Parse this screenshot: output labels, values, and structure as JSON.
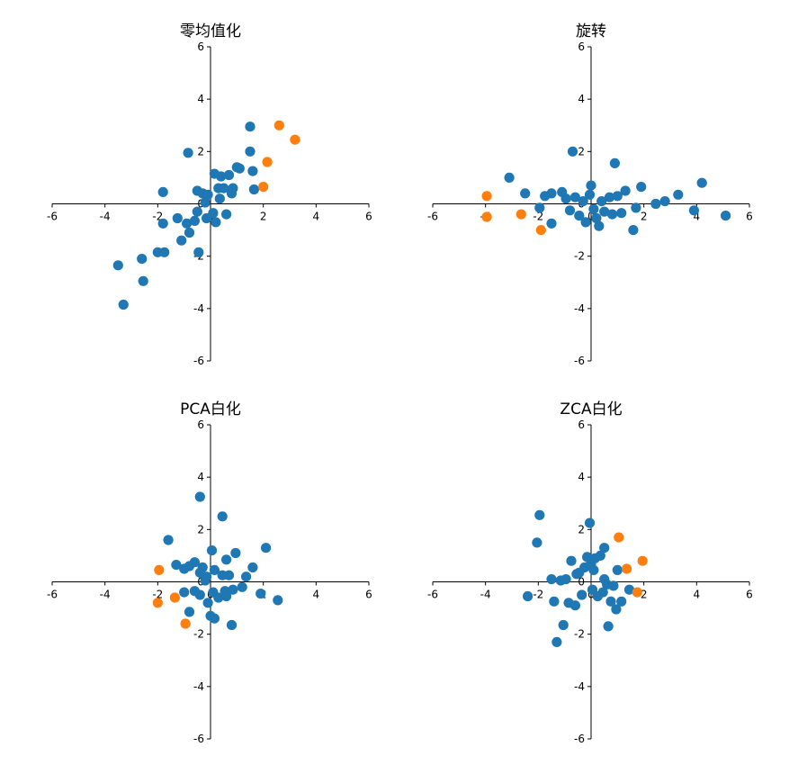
{
  "colors": {
    "series_main": "#1f77b4",
    "series_highlight": "#ff7f0e",
    "axis": "#000000"
  },
  "chart_data": [
    {
      "type": "scatter",
      "title": "零均值化",
      "xlim": [
        -6,
        6
      ],
      "ylim": [
        -6,
        6
      ],
      "xticks": [
        "-6",
        "-4",
        "-2",
        "0",
        "2",
        "4",
        "6"
      ],
      "yticks": [
        "-6",
        "-4",
        "-2",
        "0",
        "2",
        "4",
        "6"
      ],
      "spines": "centered",
      "grid": false,
      "series": [
        {
          "color": "#1f77b4",
          "points": [
            [
              -3.3,
              -3.85
            ],
            [
              -3.5,
              -2.35
            ],
            [
              -2.6,
              -2.1
            ],
            [
              -2.55,
              -2.95
            ],
            [
              -2.0,
              -1.85
            ],
            [
              -1.75,
              -1.85
            ],
            [
              -1.8,
              -0.75
            ],
            [
              -1.8,
              0.45
            ],
            [
              -1.25,
              -0.55
            ],
            [
              -1.1,
              -1.4
            ],
            [
              -0.9,
              -0.75
            ],
            [
              -0.8,
              -1.1
            ],
            [
              -0.6,
              -0.65
            ],
            [
              -0.5,
              -0.3
            ],
            [
              -0.45,
              -1.85
            ],
            [
              -0.5,
              0.5
            ],
            [
              -0.3,
              0.4
            ],
            [
              -0.2,
              0.05
            ],
            [
              -0.15,
              -0.55
            ],
            [
              -0.1,
              0.35
            ],
            [
              0.1,
              -0.35
            ],
            [
              0.2,
              -0.7
            ],
            [
              0.3,
              0.6
            ],
            [
              0.35,
              0.2
            ],
            [
              0.4,
              1.05
            ],
            [
              0.5,
              0.6
            ],
            [
              0.6,
              -0.4
            ],
            [
              0.7,
              1.1
            ],
            [
              0.8,
              0.4
            ],
            [
              0.85,
              0.6
            ],
            [
              1.0,
              1.4
            ],
            [
              1.1,
              1.35
            ],
            [
              1.5,
              2.0
            ],
            [
              1.5,
              2.95
            ],
            [
              1.6,
              1.25
            ],
            [
              1.65,
              0.55
            ],
            [
              -0.85,
              1.95
            ],
            [
              0.15,
              1.15
            ]
          ]
        },
        {
          "color": "#ff7f0e",
          "points": [
            [
              2.6,
              3.0
            ],
            [
              3.2,
              2.45
            ],
            [
              2.15,
              1.6
            ],
            [
              2.0,
              0.65
            ]
          ]
        }
      ]
    },
    {
      "type": "scatter",
      "title": "旋转",
      "xlim": [
        -6,
        6
      ],
      "ylim": [
        -6,
        6
      ],
      "xticks": [
        "-6",
        "-4",
        "-2",
        "0",
        "2",
        "4",
        "6"
      ],
      "yticks": [
        "-6",
        "-4",
        "-2",
        "0",
        "2",
        "4",
        "6"
      ],
      "spines": "centered",
      "grid": false,
      "series": [
        {
          "color": "#1f77b4",
          "points": [
            [
              -3.1,
              1.0
            ],
            [
              -2.5,
              0.4
            ],
            [
              -1.95,
              -0.15
            ],
            [
              -1.75,
              0.3
            ],
            [
              -1.5,
              0.4
            ],
            [
              -1.5,
              -0.75
            ],
            [
              -1.1,
              0.45
            ],
            [
              -0.95,
              0.2
            ],
            [
              -0.8,
              -0.25
            ],
            [
              -0.7,
              2.0
            ],
            [
              -0.6,
              0.25
            ],
            [
              -0.45,
              -0.45
            ],
            [
              -0.3,
              0.1
            ],
            [
              -0.2,
              -0.7
            ],
            [
              -0.05,
              0.35
            ],
            [
              0.0,
              0.7
            ],
            [
              0.1,
              -0.2
            ],
            [
              0.2,
              -0.55
            ],
            [
              0.3,
              -0.85
            ],
            [
              0.4,
              0.1
            ],
            [
              0.5,
              -0.3
            ],
            [
              0.7,
              0.25
            ],
            [
              0.8,
              -0.4
            ],
            [
              0.9,
              1.55
            ],
            [
              1.0,
              0.3
            ],
            [
              1.15,
              -0.35
            ],
            [
              1.3,
              0.5
            ],
            [
              1.7,
              -0.15
            ],
            [
              1.6,
              -1.0
            ],
            [
              1.9,
              0.65
            ],
            [
              2.45,
              0.0
            ],
            [
              2.8,
              0.1
            ],
            [
              3.3,
              0.35
            ],
            [
              3.9,
              -0.25
            ],
            [
              4.2,
              0.8
            ],
            [
              5.1,
              -0.45
            ]
          ]
        },
        {
          "color": "#ff7f0e",
          "points": [
            [
              -3.95,
              0.3
            ],
            [
              -3.95,
              -0.5
            ],
            [
              -2.65,
              -0.4
            ],
            [
              -1.9,
              -1.0
            ]
          ]
        }
      ]
    },
    {
      "type": "scatter",
      "title": "PCA白化",
      "xlim": [
        -6,
        6
      ],
      "ylim": [
        -6,
        6
      ],
      "xticks": [
        "-6",
        "-4",
        "-2",
        "0",
        "2",
        "4",
        "6"
      ],
      "yticks": [
        "-6",
        "-4",
        "-2",
        "0",
        "2",
        "4",
        "6"
      ],
      "spines": "centered",
      "grid": false,
      "series": [
        {
          "color": "#1f77b4",
          "points": [
            [
              -0.4,
              3.25
            ],
            [
              0.45,
              2.5
            ],
            [
              -1.6,
              1.6
            ],
            [
              -1.3,
              0.65
            ],
            [
              -1.0,
              0.5
            ],
            [
              -0.8,
              0.6
            ],
            [
              -0.6,
              0.75
            ],
            [
              -0.4,
              0.35
            ],
            [
              -0.3,
              0.55
            ],
            [
              -0.15,
              0.2
            ],
            [
              0.05,
              1.2
            ],
            [
              0.15,
              0.45
            ],
            [
              0.45,
              0.25
            ],
            [
              0.55,
              -0.35
            ],
            [
              0.6,
              0.85
            ],
            [
              0.7,
              0.25
            ],
            [
              0.95,
              1.1
            ],
            [
              1.2,
              -0.2
            ],
            [
              1.35,
              0.2
            ],
            [
              1.6,
              0.55
            ],
            [
              1.9,
              -0.45
            ],
            [
              2.1,
              1.3
            ],
            [
              2.55,
              -0.7
            ],
            [
              -1.0,
              -0.4
            ],
            [
              -0.6,
              -0.35
            ],
            [
              -0.4,
              -0.5
            ],
            [
              -0.1,
              -0.8
            ],
            [
              0.1,
              -0.4
            ],
            [
              0.3,
              -0.6
            ],
            [
              0.6,
              -0.55
            ],
            [
              0.85,
              -0.3
            ],
            [
              -0.8,
              -1.15
            ],
            [
              0.0,
              -1.3
            ],
            [
              0.15,
              -1.4
            ],
            [
              0.8,
              -1.65
            ],
            [
              -0.2,
              0.05
            ]
          ]
        },
        {
          "color": "#ff7f0e",
          "points": [
            [
              -1.95,
              0.45
            ],
            [
              -2.0,
              -0.8
            ],
            [
              -1.35,
              -0.6
            ],
            [
              -0.95,
              -1.6
            ]
          ]
        }
      ]
    },
    {
      "type": "scatter",
      "title": "ZCA白化",
      "xlim": [
        -6,
        6
      ],
      "ylim": [
        -6,
        6
      ],
      "xticks": [
        "-6",
        "-4",
        "-2",
        "0",
        "2",
        "4",
        "6"
      ],
      "yticks": [
        "-6",
        "-4",
        "-2",
        "0",
        "2",
        "4",
        "6"
      ],
      "spines": "centered",
      "grid": false,
      "series": [
        {
          "color": "#1f77b4",
          "points": [
            [
              -1.95,
              2.55
            ],
            [
              -2.05,
              1.5
            ],
            [
              -2.4,
              -0.55
            ],
            [
              -1.5,
              0.1
            ],
            [
              -1.4,
              -0.75
            ],
            [
              -1.3,
              -2.3
            ],
            [
              -1.15,
              0.05
            ],
            [
              -1.05,
              -1.65
            ],
            [
              -0.95,
              0.1
            ],
            [
              -0.85,
              -0.8
            ],
            [
              -0.75,
              0.8
            ],
            [
              -0.6,
              -0.9
            ],
            [
              -0.45,
              0.35
            ],
            [
              -0.35,
              -0.5
            ],
            [
              -0.25,
              0.55
            ],
            [
              -0.15,
              0.95
            ],
            [
              -0.05,
              2.25
            ],
            [
              0.05,
              -0.3
            ],
            [
              0.1,
              0.45
            ],
            [
              0.15,
              0.9
            ],
            [
              0.25,
              -0.55
            ],
            [
              0.35,
              1.0
            ],
            [
              0.45,
              -0.4
            ],
            [
              0.5,
              0.1
            ],
            [
              0.5,
              1.3
            ],
            [
              0.6,
              -0.1
            ],
            [
              0.65,
              -1.7
            ],
            [
              0.75,
              -0.75
            ],
            [
              0.85,
              -0.15
            ],
            [
              0.95,
              -1.05
            ],
            [
              1.0,
              0.45
            ],
            [
              1.15,
              -0.75
            ],
            [
              1.45,
              -0.3
            ],
            [
              0.0,
              0.7
            ],
            [
              -0.55,
              0.3
            ]
          ]
        },
        {
          "color": "#ff7f0e",
          "points": [
            [
              1.05,
              1.7
            ],
            [
              1.35,
              0.5
            ],
            [
              1.95,
              0.8
            ],
            [
              1.75,
              -0.4
            ]
          ]
        }
      ]
    }
  ]
}
